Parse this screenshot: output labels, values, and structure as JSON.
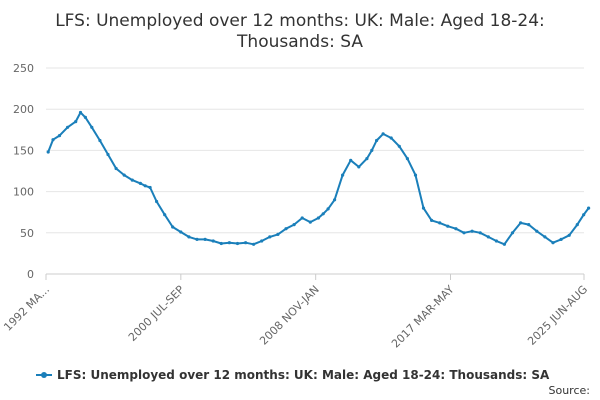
{
  "chart_data": {
    "type": "line",
    "title": "LFS: Unemployed over 12 months: UK: Male: Aged 18-24: Thousands: SA",
    "title_lines": [
      "LFS: Unemployed over 12 months: UK: Male: Aged 18-24:",
      "Thousands: SA"
    ],
    "xlabel": "",
    "ylabel": "",
    "ylim": [
      0,
      250
    ],
    "yticks": [
      0,
      50,
      100,
      150,
      200,
      250
    ],
    "xlim": [
      "1992 MAR-MAY",
      "2025 JUN-AUG"
    ],
    "xtick_labels": [
      {
        "label": "1992 MA...",
        "period": "1992 MAR-MAY"
      },
      {
        "label": "2000 JUL-SEP",
        "period": "2000 JUL-SEP"
      },
      {
        "label": "2008 NOV-JAN",
        "period": "2008 NOV-JAN"
      },
      {
        "label": "2017 MAR-MAY",
        "period": "2017 MAR-MAY"
      },
      {
        "label": "2025 JUN-AUG",
        "period": "2025 JUN-AUG"
      }
    ],
    "grid": true,
    "legend_position": "bottom",
    "series": [
      {
        "name": "LFS: Unemployed over 12 months: UK: Male: Aged 18-24: Thousands: SA",
        "color": "#1a7fba",
        "x": [
          1992.3,
          1992.6,
          1993.0,
          1993.5,
          1994.0,
          1994.3,
          1994.6,
          1995.0,
          1995.5,
          1996.0,
          1996.5,
          1997.0,
          1997.5,
          1998.0,
          1998.3,
          1998.6,
          1999.0,
          1999.5,
          2000.0,
          2000.5,
          2001.0,
          2001.5,
          2002.0,
          2002.5,
          2003.0,
          2003.5,
          2004.0,
          2004.5,
          2005.0,
          2005.5,
          2006.0,
          2006.5,
          2007.0,
          2007.5,
          2008.0,
          2008.5,
          2009.0,
          2009.3,
          2009.6,
          2010.0,
          2010.5,
          2011.0,
          2011.5,
          2012.0,
          2012.3,
          2012.6,
          2013.0,
          2013.5,
          2014.0,
          2014.5,
          2015.0,
          2015.5,
          2016.0,
          2016.5,
          2017.0,
          2017.5,
          2018.0,
          2018.5,
          2019.0,
          2019.5,
          2020.0,
          2020.5,
          2021.0,
          2021.5,
          2022.0,
          2022.5,
          2023.0,
          2023.5,
          2024.0,
          2024.5,
          2025.0,
          2025.4,
          2025.7
        ],
        "values": [
          148,
          163,
          168,
          178,
          185,
          196,
          190,
          178,
          162,
          145,
          128,
          120,
          114,
          110,
          107,
          105,
          88,
          72,
          57,
          51,
          45,
          42,
          42,
          40,
          37,
          38,
          37,
          38,
          36,
          40,
          45,
          48,
          55,
          60,
          68,
          63,
          68,
          73,
          79,
          90,
          120,
          138,
          130,
          140,
          150,
          162,
          170,
          165,
          155,
          140,
          120,
          80,
          65,
          62,
          58,
          55,
          50,
          52,
          50,
          45,
          40,
          36,
          50,
          62,
          60,
          52,
          45,
          38,
          42,
          47,
          60,
          72,
          80
        ]
      }
    ],
    "source_label": "Source:"
  }
}
